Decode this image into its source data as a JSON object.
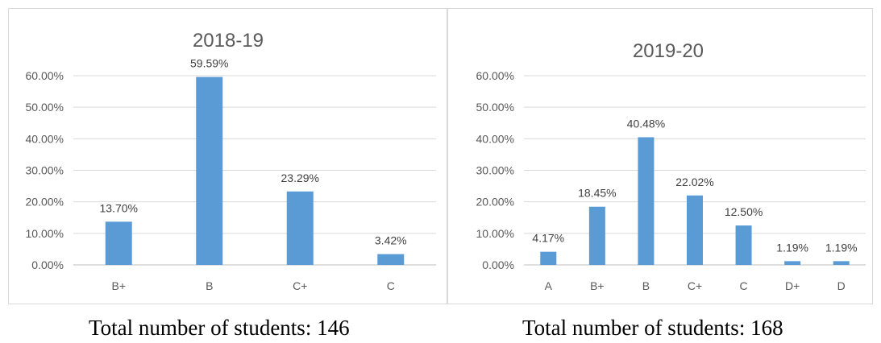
{
  "chart_data": [
    {
      "type": "bar",
      "title": "2018-19",
      "categories": [
        "B+",
        "B",
        "C+",
        "C"
      ],
      "values": [
        13.7,
        59.59,
        23.29,
        3.42
      ],
      "data_labels": [
        "13.70%",
        "59.59%",
        "23.29%",
        "3.42%"
      ],
      "y_ticks": [
        "0.00%",
        "10.00%",
        "20.00%",
        "30.00%",
        "40.00%",
        "50.00%",
        "60.00%"
      ],
      "ylim": [
        0,
        60
      ],
      "grid": true,
      "bar_color": "#5b9bd5"
    },
    {
      "type": "bar",
      "title": "2019-20",
      "categories": [
        "A",
        "B+",
        "B",
        "C+",
        "C",
        "D+",
        "D"
      ],
      "values": [
        4.17,
        18.45,
        40.48,
        22.02,
        12.5,
        1.19,
        1.19
      ],
      "data_labels": [
        "4.17%",
        "18.45%",
        "40.48%",
        "22.02%",
        "12.50%",
        "1.19%",
        "1.19%"
      ],
      "y_ticks": [
        "0.00%",
        "10.00%",
        "20.00%",
        "30.00%",
        "40.00%",
        "50.00%",
        "60.00%"
      ],
      "ylim": [
        0,
        60
      ],
      "grid": true,
      "bar_color": "#5b9bd5"
    }
  ],
  "captions": [
    "Total number of students: 146",
    "Total number of students: 168"
  ]
}
